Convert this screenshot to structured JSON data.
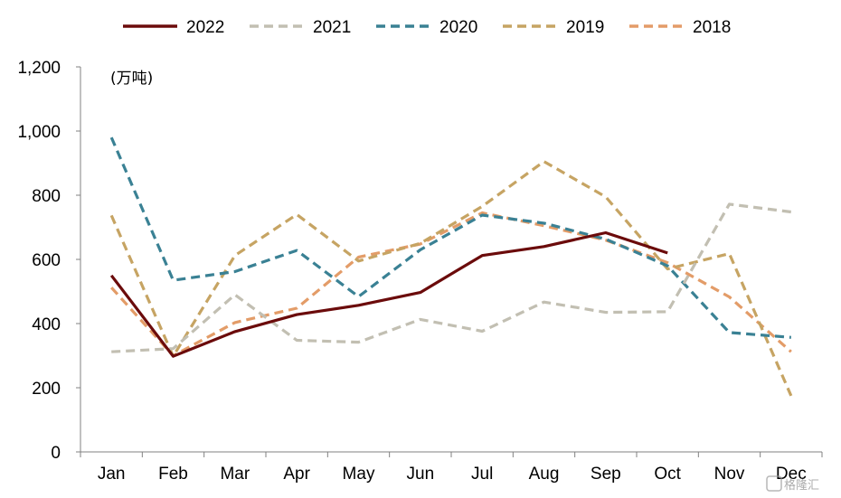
{
  "chart_data": {
    "type": "line",
    "unit_label": "(万吨)",
    "categories": [
      "Jan",
      "Feb",
      "Mar",
      "Apr",
      "May",
      "Jun",
      "Jul",
      "Aug",
      "Sep",
      "Oct",
      "Nov",
      "Dec"
    ],
    "ylim": [
      0,
      1200
    ],
    "yticks": [
      0,
      200,
      400,
      600,
      800,
      1000,
      1200
    ],
    "ytick_labels": [
      "0",
      "200",
      "400",
      "600",
      "800",
      "1,000",
      "1,200"
    ],
    "grid": false,
    "legend_position": "top",
    "series": [
      {
        "name": "2022",
        "color": "#6b0b0b",
        "dashed": false,
        "values": [
          550,
          298,
          375,
          428,
          457,
          497,
          612,
          640,
          683,
          620,
          null,
          null
        ]
      },
      {
        "name": "2021",
        "color": "#c2bfb2",
        "dashed": true,
        "values": [
          312,
          322,
          490,
          348,
          342,
          413,
          376,
          467,
          435,
          437,
          772,
          748
        ]
      },
      {
        "name": "2020",
        "color": "#3a8194",
        "dashed": true,
        "values": [
          980,
          535,
          562,
          628,
          484,
          630,
          738,
          713,
          663,
          580,
          372,
          357
        ]
      },
      {
        "name": "2019",
        "color": "#c6a463",
        "dashed": true,
        "values": [
          737,
          298,
          612,
          740,
          595,
          650,
          765,
          905,
          795,
          570,
          618,
          175
        ]
      },
      {
        "name": "2018",
        "color": "#e39c68",
        "dashed": true,
        "values": [
          512,
          300,
          403,
          448,
          607,
          648,
          745,
          705,
          660,
          590,
          483,
          312
        ]
      }
    ]
  },
  "watermark": "格隆汇"
}
